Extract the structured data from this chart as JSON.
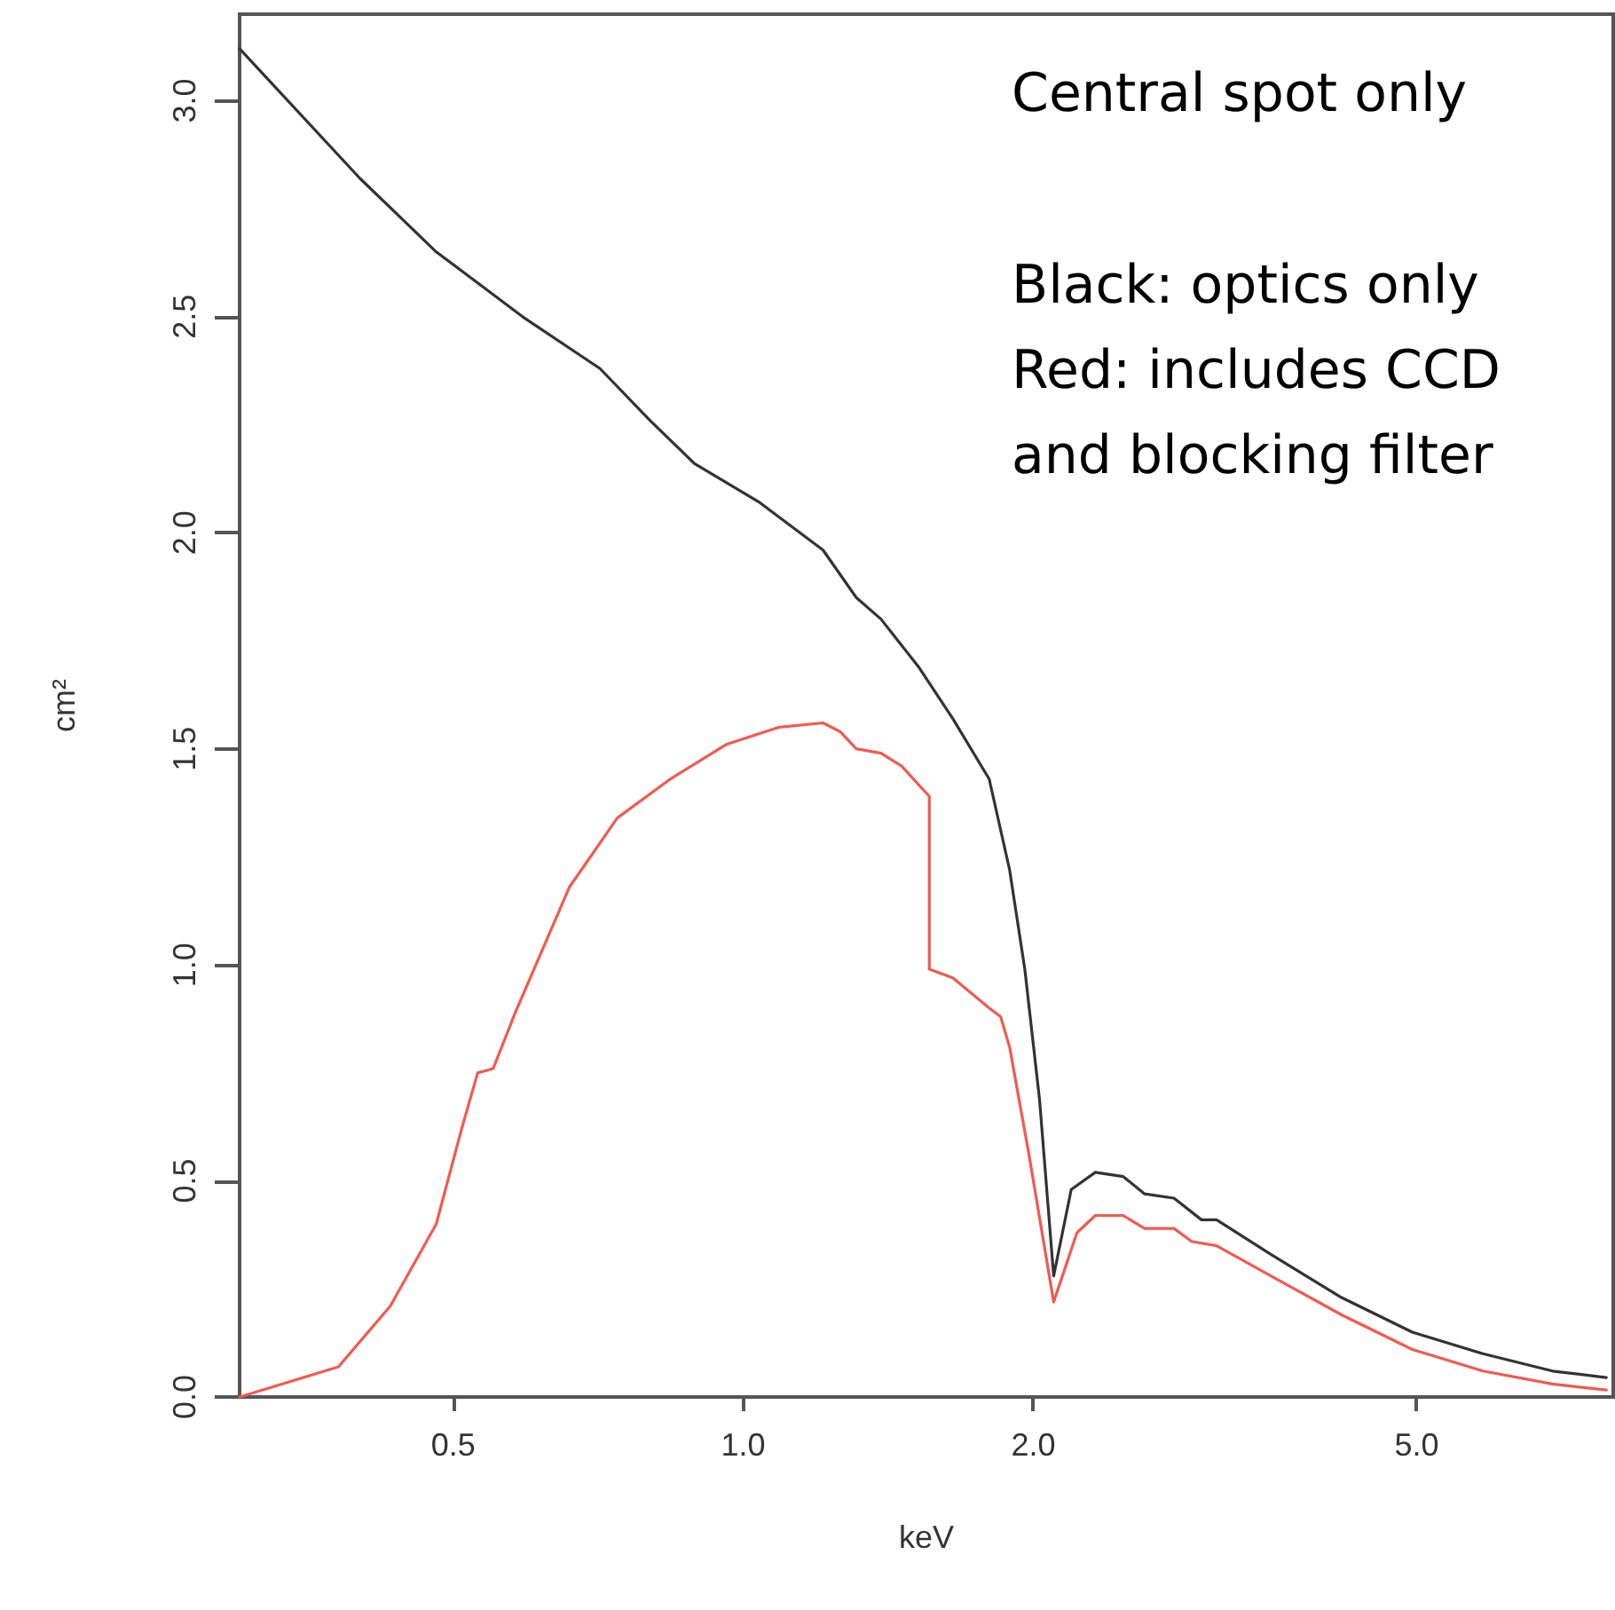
{
  "chart_data": {
    "type": "line",
    "xlabel": "keV",
    "ylabel": "cm²",
    "log": "x",
    "grid": false,
    "marker": "none",
    "line_style": "solid",
    "xlim": [
      0.3,
      8
    ],
    "xticks": [
      {
        "value": 0.5,
        "label": "0.5"
      },
      {
        "value": 1,
        "label": "1.0"
      },
      {
        "value": 2,
        "label": "2.0"
      },
      {
        "value": 5,
        "label": "5.0"
      }
    ],
    "ylim": [
      0,
      3.2
    ],
    "yticks": [
      {
        "value": 0,
        "label": "0.0"
      },
      {
        "value": 0.5,
        "label": "0.5"
      },
      {
        "value": 1,
        "label": "1.0"
      },
      {
        "value": 1.5,
        "label": "1.5"
      },
      {
        "value": 2,
        "label": "2.0"
      },
      {
        "value": 2.5,
        "label": "2.5"
      },
      {
        "value": 3,
        "label": "3.0"
      }
    ],
    "annotations": [
      "Central spot only",
      "Black: optics only",
      "Red: includes CCD",
      "and blocking filter"
    ],
    "series": [
      {
        "color": "#333333",
        "x": [
          0.3,
          0.4,
          0.48,
          0.59,
          0.71,
          0.8,
          0.89,
          1.04,
          1.21,
          1.31,
          1.39,
          1.52,
          1.65,
          1.8,
          1.89,
          1.96,
          2.03,
          2.1,
          2.19,
          2.32,
          2.48,
          2.61,
          2.8,
          2.99,
          3.1,
          3.53,
          4.18,
          4.95,
          5.86,
          6.92,
          7.87
        ],
        "values": [
          3.12,
          2.82,
          2.65,
          2.5,
          2.38,
          2.26,
          2.16,
          2.07,
          1.96,
          1.85,
          1.8,
          1.69,
          1.57,
          1.43,
          1.22,
          0.99,
          0.69,
          0.28,
          0.48,
          0.52,
          0.51,
          0.47,
          0.46,
          0.41,
          0.41,
          0.33,
          0.23,
          0.15,
          0.1,
          0.06,
          0.045
        ]
      },
      {
        "color": "#f25a4f",
        "x": [
          0.3,
          0.38,
          0.43,
          0.48,
          0.51,
          0.53,
          0.55,
          0.58,
          0.66,
          0.74,
          0.84,
          0.96,
          1.09,
          1.21,
          1.26,
          1.31,
          1.39,
          1.46,
          1.56,
          1.56,
          1.65,
          1.8,
          1.85,
          1.89,
          1.98,
          2.1,
          2.22,
          2.32,
          2.48,
          2.61,
          2.8,
          2.92,
          3.1,
          3.53,
          4.18,
          4.95,
          5.86,
          6.92,
          7.87
        ],
        "values": [
          0,
          0.07,
          0.21,
          0.4,
          0.62,
          0.75,
          0.76,
          0.89,
          1.18,
          1.34,
          1.43,
          1.51,
          1.55,
          1.56,
          1.54,
          1.5,
          1.49,
          1.46,
          1.39,
          0.99,
          0.97,
          0.9,
          0.88,
          0.81,
          0.56,
          0.22,
          0.38,
          0.42,
          0.42,
          0.39,
          0.39,
          0.36,
          0.35,
          0.28,
          0.19,
          0.11,
          0.06,
          0.03,
          0.016
        ]
      }
    ]
  }
}
